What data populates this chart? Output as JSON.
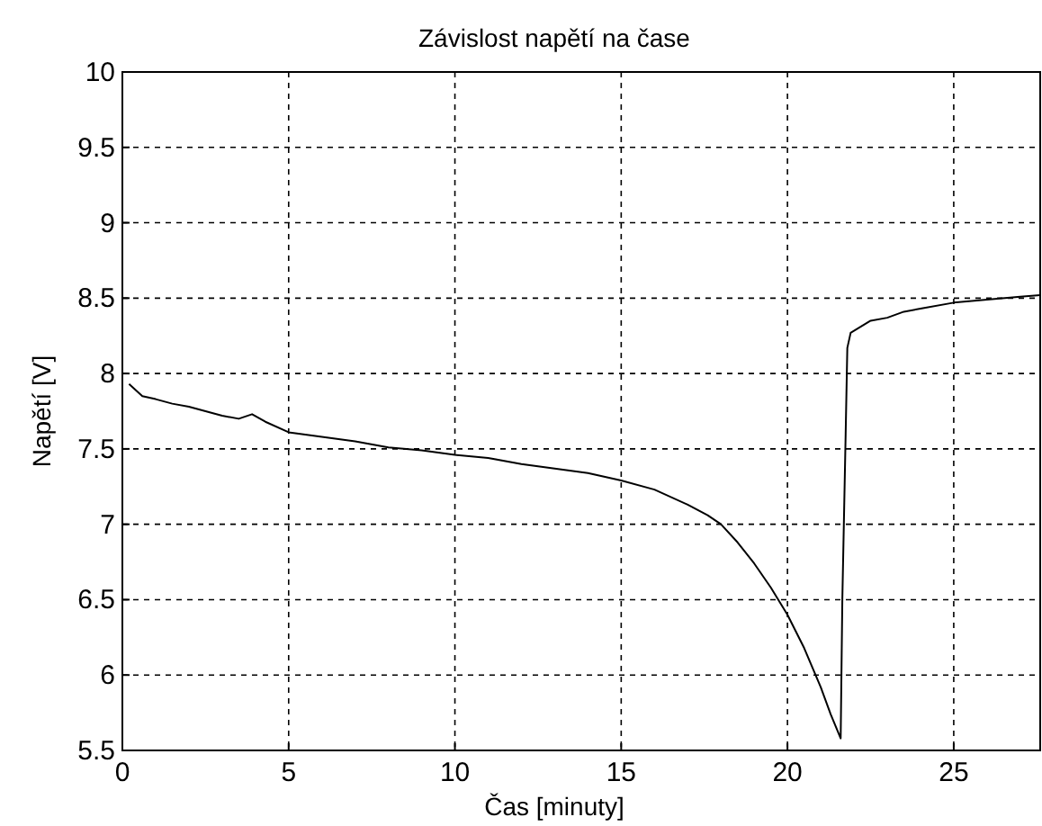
{
  "chart_data": {
    "type": "line",
    "title": "Závislost napětí na čase",
    "xlabel": "Čas [minuty]",
    "ylabel": "Napětí [V]",
    "xlim": [
      0,
      27.6
    ],
    "ylim": [
      5.5,
      10
    ],
    "xticks": [
      0,
      5,
      10,
      15,
      20,
      25
    ],
    "yticks": [
      5.5,
      6,
      6.5,
      7,
      7.5,
      8,
      8.5,
      9,
      9.5,
      10
    ],
    "grid": true,
    "line_style": "solid",
    "marker": "none",
    "series": [
      {
        "color": "#000000",
        "x": [
          0.2,
          0.6,
          1,
          1.5,
          2,
          2.5,
          3,
          3.5,
          3.9,
          4.3,
          5,
          6,
          7,
          8,
          9,
          10,
          11,
          12,
          13,
          14,
          15,
          16,
          17,
          17.6,
          18,
          18.5,
          19,
          19.5,
          20,
          20.5,
          21,
          21.3,
          21.6,
          21.65,
          21.75,
          21.8,
          21.9,
          22.5,
          23,
          23.5,
          24,
          25,
          26,
          27,
          27.6
        ],
        "values": [
          7.93,
          7.85,
          7.83,
          7.8,
          7.78,
          7.75,
          7.72,
          7.7,
          7.73,
          7.68,
          7.61,
          7.58,
          7.55,
          7.51,
          7.49,
          7.46,
          7.44,
          7.4,
          7.37,
          7.34,
          7.29,
          7.23,
          7.13,
          7.06,
          7.0,
          6.88,
          6.74,
          6.58,
          6.4,
          6.18,
          5.92,
          5.74,
          5.58,
          6.5,
          7.6,
          8.17,
          8.27,
          8.35,
          8.37,
          8.41,
          8.43,
          8.47,
          8.49,
          8.51,
          8.52
        ]
      }
    ]
  }
}
